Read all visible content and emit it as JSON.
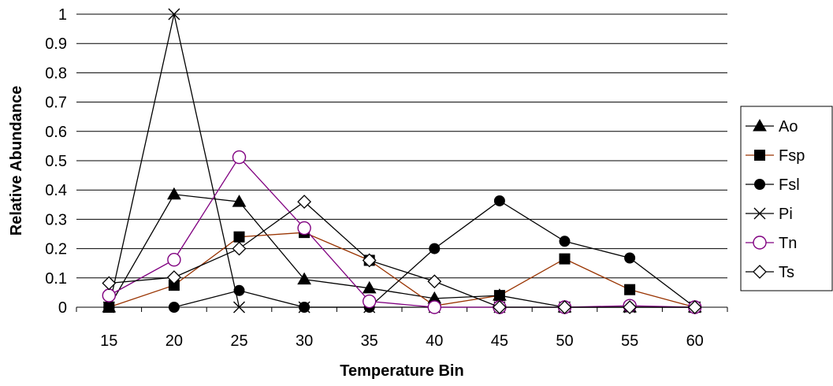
{
  "chart_data": {
    "type": "line",
    "title": "",
    "xlabel": "Temperature Bin",
    "ylabel": "Relative Abundance",
    "categories": [
      "15",
      "20",
      "25",
      "30",
      "35",
      "40",
      "45",
      "50",
      "55",
      "60"
    ],
    "yticks": [
      "0",
      "0.1",
      "0.2",
      "0.3",
      "0.4",
      "0.5",
      "0.6",
      "0.7",
      "0.8",
      "0.9",
      "1"
    ],
    "ylim": [
      0,
      1
    ],
    "grid": true,
    "legend_position": "right",
    "series": [
      {
        "name": "Ao",
        "color": "#000000",
        "marker": "triangle-filled",
        "values": [
          0.0,
          0.385,
          0.36,
          0.095,
          0.065,
          0.03,
          0.04,
          0.0,
          0.0,
          0.0
        ]
      },
      {
        "name": "Fsp",
        "color": "#993300",
        "marker": "square-filled",
        "values": [
          0.0,
          0.075,
          0.24,
          0.255,
          0.16,
          0.005,
          0.04,
          0.165,
          0.06,
          0.0
        ]
      },
      {
        "name": "Fsl",
        "color": "#000000",
        "marker": "circle-filled",
        "values": [
          0.0,
          0.0,
          0.057,
          0.0,
          0.0,
          0.2,
          0.363,
          0.225,
          0.168,
          0.0
        ]
      },
      {
        "name": "Pi",
        "color": "#000000",
        "marker": "x",
        "values": [
          0.0,
          1.0,
          0.0,
          0.0,
          0.0,
          0.0,
          0.0,
          0.0,
          0.0,
          0.0
        ]
      },
      {
        "name": "Tn",
        "color": "#800080",
        "marker": "circle-open",
        "values": [
          0.04,
          0.162,
          0.512,
          0.27,
          0.02,
          0.0,
          0.0,
          0.0,
          0.005,
          0.0
        ]
      },
      {
        "name": "Ts",
        "color": "#000000",
        "marker": "diamond-open",
        "values": [
          0.082,
          0.102,
          0.2,
          0.36,
          0.16,
          0.088,
          0.0,
          0.0,
          0.0,
          0.0
        ]
      }
    ]
  }
}
